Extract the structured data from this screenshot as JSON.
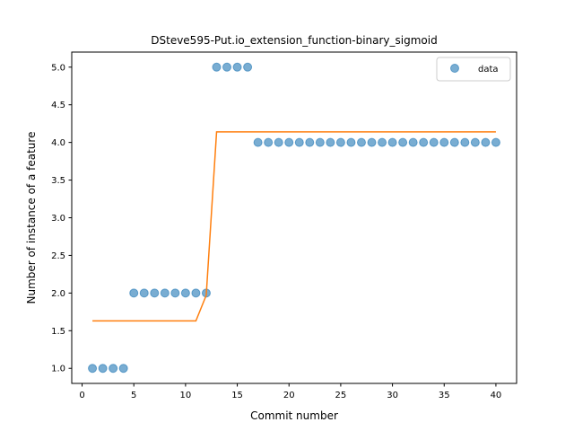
{
  "chart_data": {
    "type": "scatter",
    "title": "DSteve595-Put.io_extension_function-binary_sigmoid",
    "xlabel": "Commit number",
    "ylabel": "Number of instance of a feature",
    "xlim": [
      -1,
      42
    ],
    "ylim": [
      0.8,
      5.2
    ],
    "xticks": [
      0,
      5,
      10,
      15,
      20,
      25,
      30,
      35,
      40
    ],
    "yticks": [
      1.0,
      1.5,
      2.0,
      2.5,
      3.0,
      3.5,
      4.0,
      4.5,
      5.0
    ],
    "xtick_labels": [
      "0",
      "5",
      "10",
      "15",
      "20",
      "25",
      "30",
      "35",
      "40"
    ],
    "ytick_labels": [
      "1.0",
      "1.5",
      "2.0",
      "2.5",
      "3.0",
      "3.5",
      "4.0",
      "4.5",
      "5.0"
    ],
    "grid": false,
    "legend_position": "top-right",
    "series": [
      {
        "name": "data",
        "kind": "scatter",
        "color": "#1f77b4",
        "x": [
          1,
          2,
          3,
          4,
          5,
          6,
          7,
          8,
          9,
          10,
          11,
          12,
          13,
          14,
          15,
          16,
          17,
          18,
          19,
          20,
          21,
          22,
          23,
          24,
          25,
          26,
          27,
          28,
          29,
          30,
          31,
          32,
          33,
          34,
          35,
          36,
          37,
          38,
          39,
          40
        ],
        "y": [
          1,
          1,
          1,
          1,
          2,
          2,
          2,
          2,
          2,
          2,
          2,
          2,
          5,
          5,
          5,
          5,
          4,
          4,
          4,
          4,
          4,
          4,
          4,
          4,
          4,
          4,
          4,
          4,
          4,
          4,
          4,
          4,
          4,
          4,
          4,
          4,
          4,
          4,
          4,
          4
        ]
      },
      {
        "kind": "line",
        "color": "#ff7f0e",
        "x": [
          1,
          2,
          3,
          4,
          5,
          6,
          7,
          8,
          9,
          10,
          11,
          12,
          13,
          14,
          15,
          16,
          17,
          18,
          19,
          20,
          21,
          22,
          23,
          24,
          25,
          26,
          27,
          28,
          29,
          30,
          31,
          32,
          33,
          34,
          35,
          36,
          37,
          38,
          39,
          40
        ],
        "y": [
          1.63,
          1.63,
          1.63,
          1.63,
          1.63,
          1.63,
          1.63,
          1.63,
          1.63,
          1.63,
          1.63,
          1.97,
          4.14,
          4.14,
          4.14,
          4.14,
          4.14,
          4.14,
          4.14,
          4.14,
          4.14,
          4.14,
          4.14,
          4.14,
          4.14,
          4.14,
          4.14,
          4.14,
          4.14,
          4.14,
          4.14,
          4.14,
          4.14,
          4.14,
          4.14,
          4.14,
          4.14,
          4.14,
          4.14,
          4.14
        ]
      }
    ]
  }
}
